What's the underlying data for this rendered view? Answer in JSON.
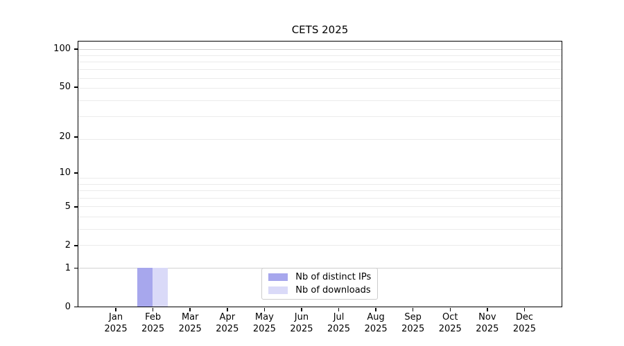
{
  "chart_data": {
    "type": "bar",
    "title": "CETS 2025",
    "categories": [
      [
        "Jan",
        "2025"
      ],
      [
        "Feb",
        "2025"
      ],
      [
        "Mar",
        "2025"
      ],
      [
        "Apr",
        "2025"
      ],
      [
        "May",
        "2025"
      ],
      [
        "Jun",
        "2025"
      ],
      [
        "Jul",
        "2025"
      ],
      [
        "Aug",
        "2025"
      ],
      [
        "Sep",
        "2025"
      ],
      [
        "Oct",
        "2025"
      ],
      [
        "Nov",
        "2025"
      ],
      [
        "Dec",
        "2025"
      ]
    ],
    "series": [
      {
        "name": "Nb of distinct IPs",
        "color": "#a7a7ed",
        "values": [
          0,
          1,
          0,
          0,
          0,
          0,
          0,
          0,
          0,
          0,
          0,
          0
        ]
      },
      {
        "name": "Nb of downloads",
        "color": "#dadaf8",
        "values": [
          0,
          1,
          0,
          0,
          0,
          0,
          0,
          0,
          0,
          0,
          0,
          0
        ]
      }
    ],
    "xlabel": "",
    "ylabel": "",
    "yscale": "log1p",
    "yticks": [
      0,
      1,
      2,
      5,
      10,
      20,
      50,
      100
    ],
    "ylim": [
      0,
      114
    ],
    "grid": "horizontal",
    "gridline_values": [
      1,
      2,
      3,
      4,
      5,
      6,
      7,
      8,
      9,
      19,
      29,
      39,
      49,
      59,
      69,
      79,
      89,
      99
    ],
    "grid_emphasis_values": [
      1,
      99
    ],
    "legend": {
      "position": "lower-center-inside"
    },
    "colors": {
      "axis": "#000000",
      "text": "#000000",
      "grid": "#ebebeb",
      "grid_emphasis": "#d2d2d2",
      "background": "#ffffff"
    }
  }
}
